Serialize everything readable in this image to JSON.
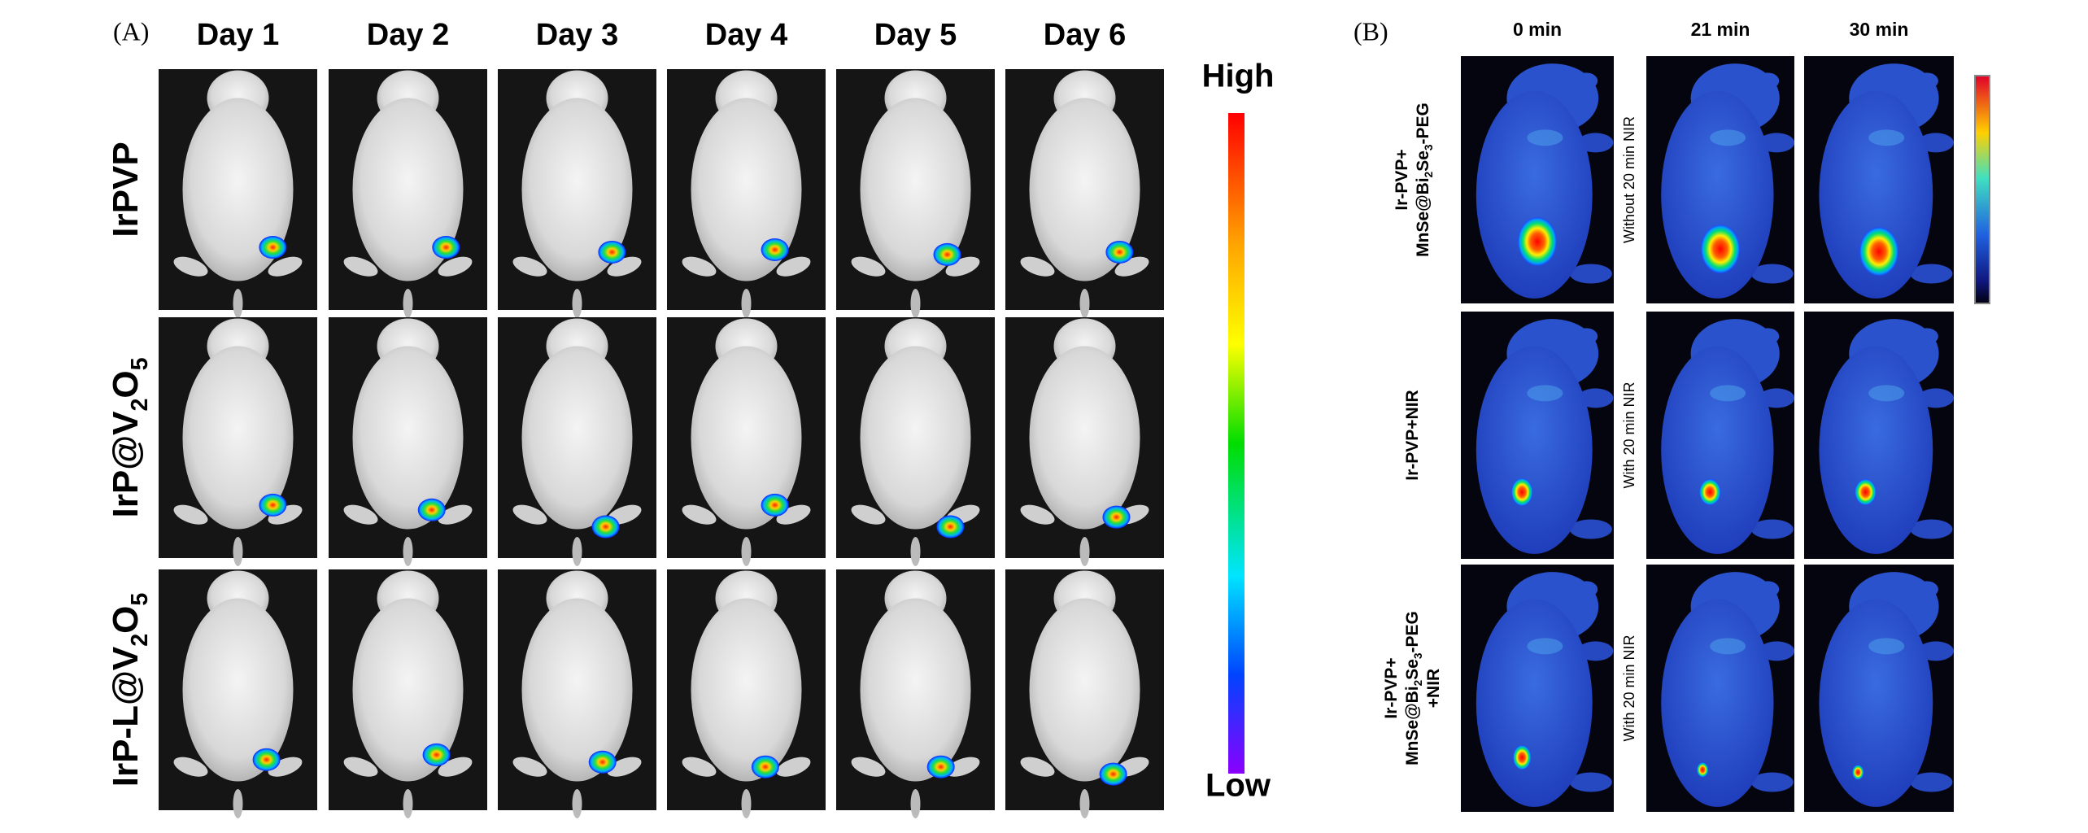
{
  "panel_a": {
    "label": "(A)",
    "columns": [
      "Day 1",
      "Day 2",
      "Day 3",
      "Day 4",
      "Day 5",
      "Day 6"
    ],
    "rows": [
      [
        {
          "t": "IrPVP"
        }
      ],
      [
        {
          "t": "IrP@V"
        },
        {
          "t": "2",
          "sub": true
        },
        {
          "t": "O"
        },
        {
          "t": "5",
          "sub": true
        }
      ],
      [
        {
          "t": "IrP-L@V"
        },
        {
          "t": "2",
          "sub": true
        },
        {
          "t": "O"
        },
        {
          "t": "5",
          "sub": true
        }
      ]
    ],
    "scale": {
      "high": "High",
      "low": "Low"
    }
  },
  "panel_b": {
    "label": "(B)",
    "columns": [
      "0 min",
      "21 min",
      "30 min"
    ],
    "rows": [
      {
        "lines": [
          [
            {
              "t": "Ir-PVP+"
            }
          ],
          [
            {
              "t": "MnSe@Bi"
            },
            {
              "t": "2",
              "sub": true
            },
            {
              "t": "Se"
            },
            {
              "t": "3",
              "sub": true
            },
            {
              "t": "-PEG"
            }
          ]
        ],
        "note": "Without  20 min NIR"
      },
      {
        "lines": [
          [
            {
              "t": "Ir-PVP+NIR"
            }
          ]
        ],
        "note": "With 20 min NIR"
      },
      {
        "lines": [
          [
            {
              "t": "Ir-PVP+"
            }
          ],
          [
            {
              "t": "MnSe@Bi"
            },
            {
              "t": "2",
              "sub": true
            },
            {
              "t": "Se"
            },
            {
              "t": "3",
              "sub": true
            },
            {
              "t": "-PEG"
            }
          ],
          [
            {
              "t": "+NIR"
            }
          ]
        ],
        "note": "With 20 min NIR"
      }
    ]
  }
}
